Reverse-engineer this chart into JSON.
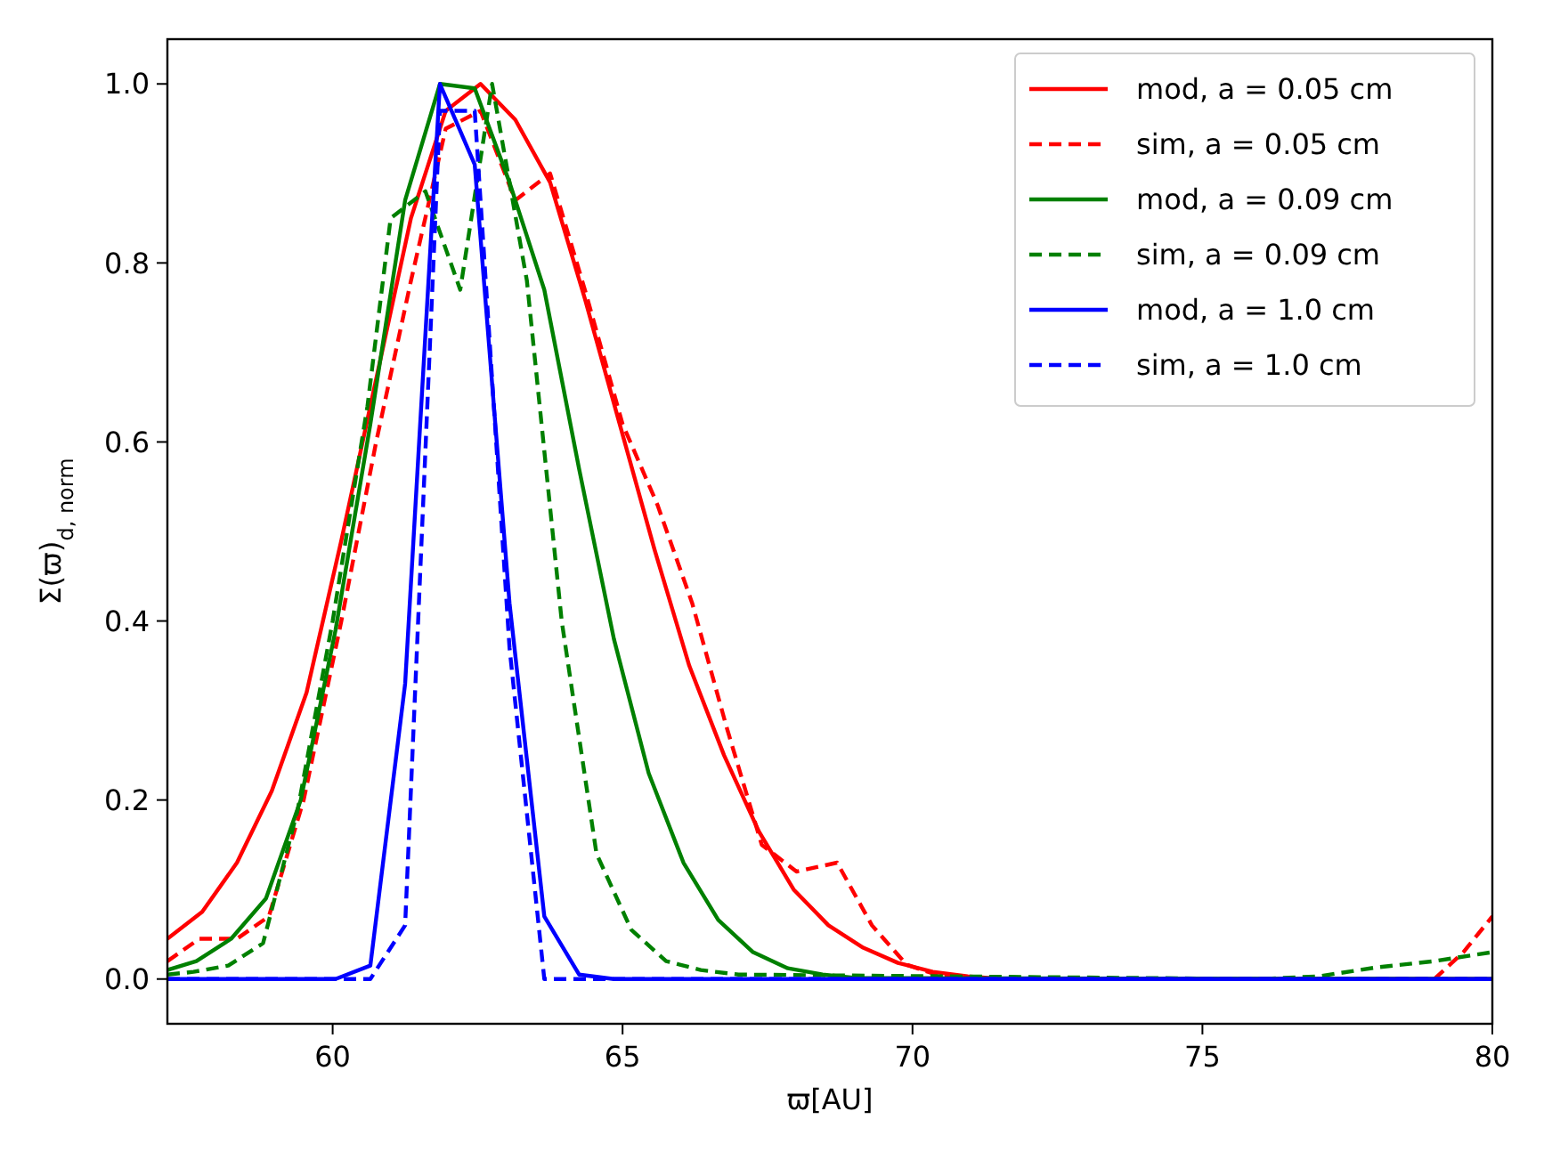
{
  "chart_data": {
    "type": "line",
    "xlabel": "ϖ[AU]",
    "ylabel": "Σ(ϖ)$_{d, norm}$",
    "xlim": [
      57.15,
      80
    ],
    "ylim": [
      -0.05,
      1.05
    ],
    "xticks": [
      60,
      65,
      70,
      75,
      80
    ],
    "yticks": [
      {
        "value": 0,
        "label": "0.0"
      },
      {
        "value": 0.2,
        "label": "0.2"
      },
      {
        "value": 0.4,
        "label": "0.4"
      },
      {
        "value": 0.6,
        "label": "0.6"
      },
      {
        "value": 0.8,
        "label": "0.8"
      },
      {
        "value": 1,
        "label": "1.0"
      }
    ],
    "grid": false,
    "legend": "top right",
    "series": [
      {
        "name": "mod, a = 0.05 cm",
        "color": "#ff0000",
        "line_style": "solid",
        "x": [
          57.15,
          57.75,
          58.35,
          58.95,
          59.55,
          60.15,
          60.75,
          61.35,
          61.95,
          62.55,
          63.15,
          63.75,
          64.35,
          64.95,
          65.55,
          66.15,
          66.75,
          67.35,
          67.95,
          68.55,
          69.15,
          69.75,
          70.35,
          70.95,
          71.55,
          80
        ],
        "values": [
          0.045,
          0.075,
          0.13,
          0.21,
          0.32,
          0.49,
          0.67,
          0.85,
          0.97,
          1.0,
          0.96,
          0.89,
          0.76,
          0.62,
          0.48,
          0.35,
          0.25,
          0.165,
          0.1,
          0.06,
          0.035,
          0.018,
          0.008,
          0.003,
          0,
          0
        ]
      },
      {
        "name": "sim, a = 0.05 cm",
        "color": "#ff0000",
        "line_style": "dashed",
        "x": [
          57.15,
          57.7,
          58.35,
          58.9,
          59.5,
          60.15,
          60.75,
          61.35,
          61.95,
          62.55,
          63.15,
          63.75,
          64.35,
          65.0,
          65.6,
          66.2,
          66.8,
          67.4,
          68.0,
          68.7,
          69.3,
          69.9,
          70.5,
          71,
          79,
          79.5,
          80
        ],
        "values": [
          0.02,
          0.045,
          0.045,
          0.07,
          0.2,
          0.4,
          0.6,
          0.78,
          0.95,
          0.97,
          0.87,
          0.9,
          0.77,
          0.62,
          0.53,
          0.42,
          0.28,
          0.15,
          0.12,
          0.13,
          0.06,
          0.016,
          0.003,
          0,
          0,
          0.03,
          0.07
        ]
      },
      {
        "name": "mod, a = 0.09 cm",
        "color": "#008000",
        "line_style": "solid",
        "x": [
          57.15,
          57.65,
          58.25,
          58.85,
          59.45,
          60.05,
          60.65,
          61.25,
          61.85,
          62.45,
          63.05,
          63.65,
          64.25,
          64.85,
          65.45,
          66.05,
          66.65,
          67.25,
          67.85,
          68.45,
          69.05,
          80
        ],
        "values": [
          0.01,
          0.02,
          0.045,
          0.09,
          0.2,
          0.39,
          0.62,
          0.87,
          1.0,
          0.995,
          0.89,
          0.77,
          0.57,
          0.38,
          0.23,
          0.13,
          0.066,
          0.03,
          0.012,
          0.005,
          0.001,
          0
        ]
      },
      {
        "name": "sim, a = 0.09 cm",
        "color": "#008000",
        "line_style": "dashed",
        "x": [
          57.15,
          57.6,
          58.2,
          58.8,
          59.4,
          60.0,
          60.6,
          61.0,
          61.6,
          62.2,
          62.75,
          63.35,
          63.95,
          64.55,
          65.15,
          65.75,
          66.35,
          67,
          76,
          77,
          78,
          79,
          80
        ],
        "values": [
          0.005,
          0.008,
          0.015,
          0.04,
          0.19,
          0.4,
          0.64,
          0.85,
          0.88,
          0.77,
          1.0,
          0.78,
          0.4,
          0.14,
          0.055,
          0.02,
          0.01,
          0.005,
          0,
          0.003,
          0.013,
          0.02,
          0.03
        ]
      },
      {
        "name": "mod, a = 1.0 cm",
        "color": "#0000ff",
        "line_style": "solid",
        "x": [
          57.15,
          60.05,
          60.65,
          61.25,
          61.85,
          62.45,
          63.05,
          63.65,
          64.25,
          64.85,
          80
        ],
        "values": [
          0,
          0,
          0.015,
          0.33,
          1.0,
          0.91,
          0.42,
          0.07,
          0.005,
          0,
          0
        ]
      },
      {
        "name": "sim, a = 1.0 cm",
        "color": "#0000ff",
        "line_style": "dashed",
        "x": [
          57.15,
          60.65,
          61.25,
          61.85,
          62.45,
          63.05,
          63.65,
          80
        ],
        "values": [
          0,
          0,
          0.06,
          0.97,
          0.97,
          0.37,
          0,
          0
        ]
      }
    ]
  }
}
